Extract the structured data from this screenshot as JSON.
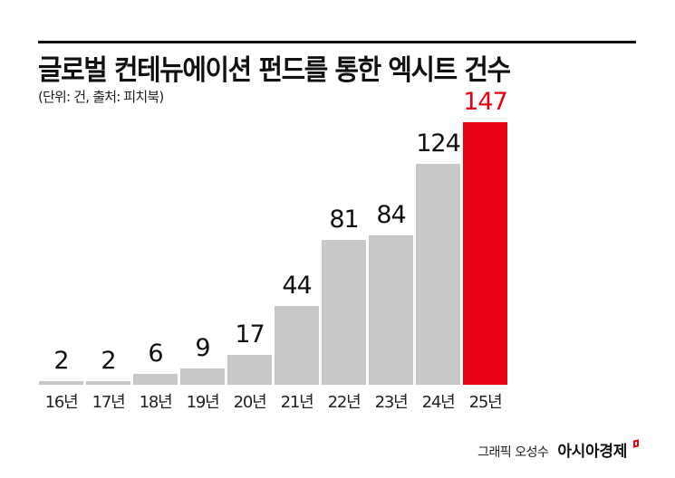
{
  "header": {
    "title": "글로벌 컨테뉴에이션 펀드를 통한 엑시트 건수",
    "subtitle": "(단위: 건, 출처: 피치북)"
  },
  "footer": {
    "credit": "그래픽 오성수",
    "brand": "아시아경제"
  },
  "colors": {
    "bar": "#c8c8c8",
    "highlight": "#e60012",
    "text": "#111111"
  },
  "chart_data": {
    "type": "bar",
    "title": "글로벌 컨테뉴에이션 펀드를 통한 엑시트 건수",
    "subtitle": "(단위: 건, 출처: 피치북)",
    "xlabel": "",
    "ylabel": "건",
    "categories": [
      "16년",
      "17년",
      "18년",
      "19년",
      "20년",
      "21년",
      "22년",
      "23년",
      "24년",
      "25년"
    ],
    "values": [
      2,
      2,
      6,
      9,
      17,
      44,
      81,
      84,
      124,
      147
    ],
    "highlight_index": 9,
    "ylim": [
      0,
      150
    ],
    "grid": false,
    "legend": "none",
    "data_labels": true
  }
}
